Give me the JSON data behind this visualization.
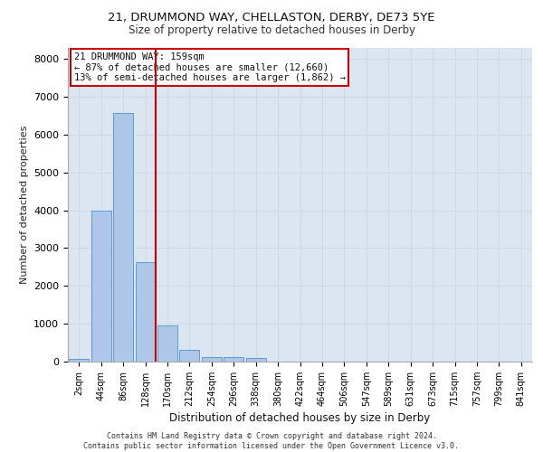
{
  "title_line1": "21, DRUMMOND WAY, CHELLASTON, DERBY, DE73 5YE",
  "title_line2": "Size of property relative to detached houses in Derby",
  "xlabel": "Distribution of detached houses by size in Derby",
  "ylabel": "Number of detached properties",
  "bar_labels": [
    "2sqm",
    "44sqm",
    "86sqm",
    "128sqm",
    "170sqm",
    "212sqm",
    "254sqm",
    "296sqm",
    "338sqm",
    "380sqm",
    "422sqm",
    "464sqm",
    "506sqm",
    "547sqm",
    "589sqm",
    "631sqm",
    "673sqm",
    "715sqm",
    "757sqm",
    "799sqm",
    "841sqm"
  ],
  "bar_values": [
    80,
    3980,
    6560,
    2620,
    960,
    310,
    130,
    110,
    90,
    0,
    0,
    0,
    0,
    0,
    0,
    0,
    0,
    0,
    0,
    0,
    0
  ],
  "bar_color": "#aec6e8",
  "bar_edge_color": "#5b9bd5",
  "grid_color": "#d0d8e8",
  "background_color": "#dce6f1",
  "vline_color": "#cc0000",
  "annotation_text": "21 DRUMMOND WAY: 159sqm\n← 87% of detached houses are smaller (12,660)\n13% of semi-detached houses are larger (1,862) →",
  "annotation_box_color": "#cc0000",
  "ylim": [
    0,
    8300
  ],
  "yticks": [
    0,
    1000,
    2000,
    3000,
    4000,
    5000,
    6000,
    7000,
    8000
  ],
  "footer_line1": "Contains HM Land Registry data © Crown copyright and database right 2024.",
  "footer_line2": "Contains public sector information licensed under the Open Government Licence v3.0.",
  "title1_fontsize": 9.5,
  "title2_fontsize": 8.5,
  "ylabel_fontsize": 8,
  "xlabel_fontsize": 8.5,
  "tick_fontsize": 7,
  "annot_fontsize": 7.5,
  "footer_fontsize": 6
}
